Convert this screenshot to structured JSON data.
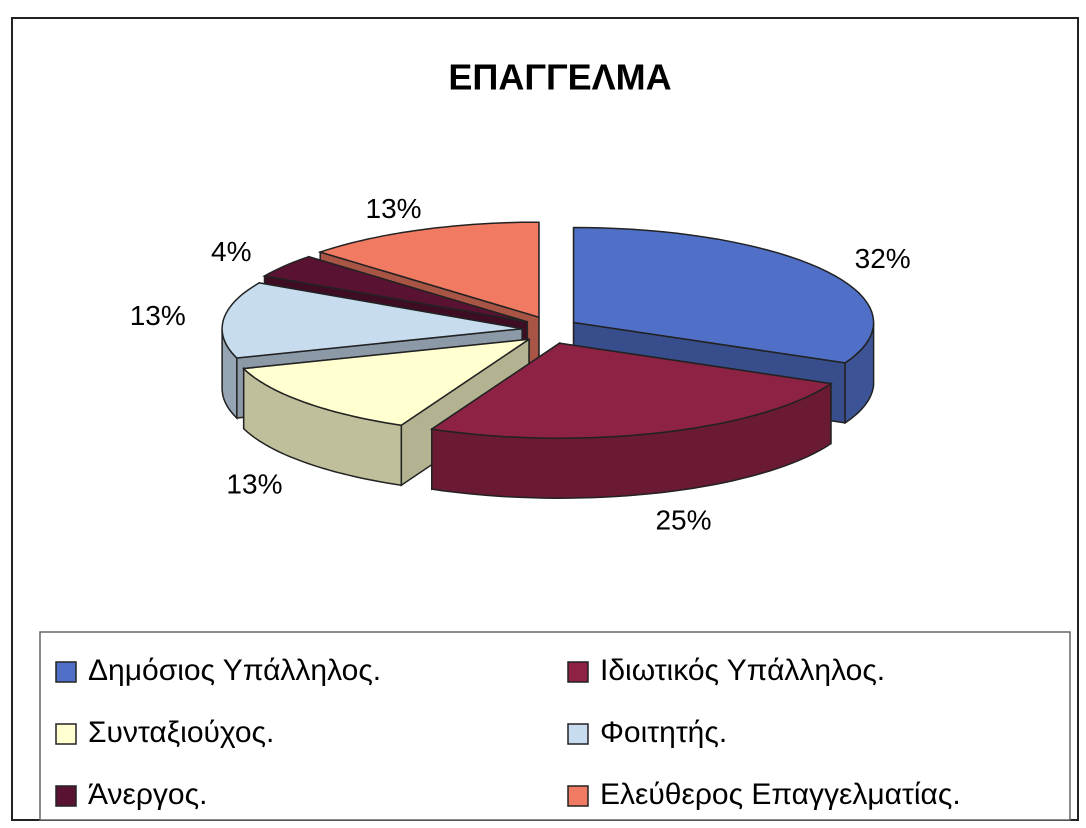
{
  "chart_data": {
    "type": "pie3d",
    "title": "ΕΠΑΓΓΕΛΜΑ",
    "categories": [
      "Δημόσιος Υπάλληλος.",
      "Ιδιωτικός Υπάλληλος.",
      "Συνταξιούχος.",
      "Φοιτητής.",
      "Άνεργος.",
      "Ελεύθερος Επαγγελματίας."
    ],
    "values": [
      32,
      25,
      13,
      13,
      4,
      13
    ],
    "value_labels": [
      "32%",
      "25%",
      "13%",
      "13%",
      "4%",
      "13%"
    ],
    "colors": [
      "#5070c8",
      "#8e2244",
      "#ffffd0",
      "#c8dcf0",
      "#5a1232",
      "#f07a62"
    ],
    "legend": "bottom"
  }
}
